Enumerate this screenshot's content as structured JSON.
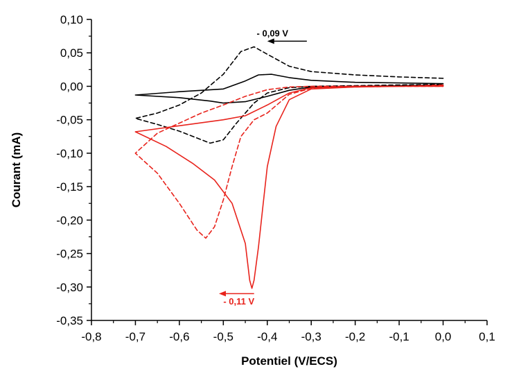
{
  "chart_data": {
    "type": "line",
    "title": "",
    "xlabel": "Potentiel (V/ECS)",
    "ylabel": "Courant (mA)",
    "xlim": [
      -0.8,
      0.1
    ],
    "ylim": [
      -0.35,
      0.1
    ],
    "x_ticks": [
      "-0,8",
      "-0,7",
      "-0,6",
      "-0,5",
      "-0,4",
      "-0,3",
      "-0,2",
      "-0,1",
      "0,0",
      "0,1"
    ],
    "x_tick_values": [
      -0.8,
      -0.7,
      -0.6,
      -0.5,
      -0.4,
      -0.3,
      -0.2,
      -0.1,
      0.0,
      0.1
    ],
    "y_ticks": [
      "0,10",
      "0,05",
      "0,00",
      "-0,05",
      "-0,10",
      "-0,15",
      "-0,20",
      "-0,25",
      "-0,30",
      "-0,35"
    ],
    "y_tick_values": [
      0.1,
      0.05,
      0.0,
      -0.05,
      -0.1,
      -0.15,
      -0.2,
      -0.25,
      -0.3,
      -0.35
    ],
    "grid": false,
    "legend": "none",
    "series": [
      {
        "color": "#000000",
        "style": "solid",
        "x": [
          0.0,
          -0.1,
          -0.2,
          -0.3,
          -0.35,
          -0.39,
          -0.42,
          -0.45,
          -0.5,
          -0.6,
          -0.7,
          -0.6,
          -0.53,
          -0.5,
          -0.45,
          -0.4,
          -0.35,
          -0.3,
          -0.2,
          -0.1,
          0.0
        ],
        "y": [
          0.004,
          0.005,
          0.006,
          0.009,
          0.013,
          0.018,
          0.017,
          0.008,
          -0.004,
          -0.008,
          -0.013,
          -0.017,
          -0.022,
          -0.025,
          -0.023,
          -0.015,
          -0.006,
          -0.001,
          0.0,
          0.001,
          0.002
        ]
      },
      {
        "color": "#000000",
        "style": "dashed",
        "x": [
          0.0,
          -0.1,
          -0.2,
          -0.3,
          -0.35,
          -0.4,
          -0.43,
          -0.46,
          -0.5,
          -0.55,
          -0.6,
          -0.65,
          -0.7,
          -0.65,
          -0.6,
          -0.53,
          -0.5,
          -0.47,
          -0.43,
          -0.4,
          -0.35,
          -0.3,
          -0.2,
          -0.1,
          0.0
        ],
        "y": [
          0.012,
          0.014,
          0.017,
          0.022,
          0.03,
          0.048,
          0.059,
          0.052,
          0.018,
          -0.01,
          -0.028,
          -0.04,
          -0.048,
          -0.057,
          -0.067,
          -0.085,
          -0.08,
          -0.055,
          -0.025,
          -0.01,
          -0.002,
          0.0,
          0.001,
          0.002,
          0.003
        ]
      },
      {
        "color": "#e8231c",
        "style": "solid",
        "x": [
          0.0,
          -0.1,
          -0.2,
          -0.3,
          -0.35,
          -0.38,
          -0.4,
          -0.41,
          -0.42,
          -0.43,
          -0.435,
          -0.44,
          -0.45,
          -0.48,
          -0.52,
          -0.57,
          -0.63,
          -0.7,
          -0.6,
          -0.5,
          -0.45,
          -0.4,
          -0.35,
          -0.3,
          -0.2,
          -0.1,
          0.0
        ],
        "y": [
          0.0,
          0.0,
          -0.001,
          -0.004,
          -0.02,
          -0.06,
          -0.12,
          -0.18,
          -0.24,
          -0.29,
          -0.302,
          -0.29,
          -0.235,
          -0.175,
          -0.14,
          -0.115,
          -0.09,
          -0.068,
          -0.059,
          -0.05,
          -0.044,
          -0.028,
          -0.01,
          -0.002,
          0.0,
          0.0,
          0.001
        ]
      },
      {
        "color": "#e8231c",
        "style": "dashed",
        "x": [
          0.0,
          -0.1,
          -0.2,
          -0.3,
          -0.35,
          -0.4,
          -0.43,
          -0.46,
          -0.48,
          -0.5,
          -0.52,
          -0.54,
          -0.56,
          -0.6,
          -0.65,
          -0.7,
          -0.65,
          -0.6,
          -0.55,
          -0.5,
          -0.45,
          -0.4,
          -0.35,
          -0.3,
          -0.2,
          -0.1,
          0.0
        ],
        "y": [
          0.002,
          0.0,
          -0.001,
          -0.003,
          -0.012,
          -0.04,
          -0.05,
          -0.075,
          -0.12,
          -0.17,
          -0.21,
          -0.227,
          -0.215,
          -0.175,
          -0.13,
          -0.1,
          -0.07,
          -0.055,
          -0.04,
          -0.028,
          -0.015,
          -0.005,
          -0.001,
          0.0,
          0.0,
          0.0,
          0.0
        ]
      }
    ],
    "annotations": [
      {
        "text": "- 0,09 V",
        "color": "#000000",
        "x": -0.424,
        "y": 0.0745,
        "arrow_from": -0.31,
        "arrow_to": -0.4,
        "arrow_y": 0.0675
      },
      {
        "text": "- 0,11 V",
        "color": "#e8231c",
        "x": -0.5,
        "y": -0.326,
        "arrow_from": -0.43,
        "arrow_to": -0.51,
        "arrow_y": -0.31
      }
    ]
  }
}
